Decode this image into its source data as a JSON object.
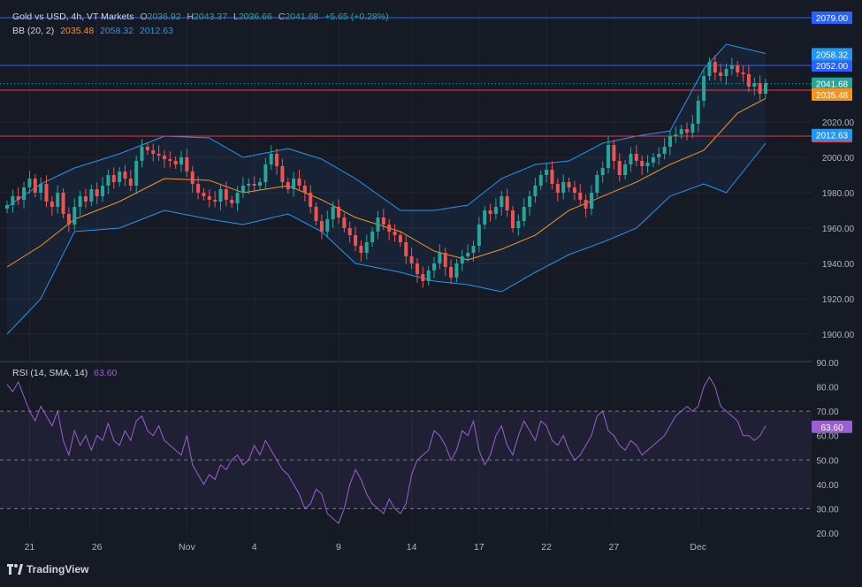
{
  "header": {
    "symbol": "Gold vs USD, 4h, VT Markets",
    "open_label": "O",
    "open": "2036.92",
    "high_label": "H",
    "high": "2043.37",
    "low_label": "L",
    "low": "2036.66",
    "close_label": "C",
    "close": "2041.68",
    "change": "+5.65 (+0.28%)"
  },
  "bb_legend": {
    "label": "BB (20, 2)",
    "basis": "2035.48",
    "upper": "2058.32",
    "lower": "2012.63"
  },
  "rsi_legend": {
    "label": "RSI (14, SMA, 14)",
    "value": "63.60"
  },
  "branding": {
    "name": "TradingView"
  },
  "colors": {
    "up": "#26a69a",
    "down": "#ef5350",
    "basis": "#f7931a",
    "band": "#2196f3",
    "rsi": "#9a5fd0",
    "hline_blue": "#2962ff",
    "hline_red": "#f23645"
  },
  "chart_data": [
    {
      "type": "candlestick",
      "title": "Gold vs USD, 4h, VT Markets",
      "ylim": [
        1885,
        2085
      ],
      "yticks": [
        "2020.00",
        "2000.00",
        "1980.00",
        "1960.00",
        "1940.00",
        "1920.00",
        "1900.00"
      ],
      "x_tick_labels": [
        "21",
        "26",
        "Nov",
        "4",
        "9",
        "14",
        "17",
        "22",
        "27",
        "Dec"
      ],
      "close_series": [
        1973,
        1978,
        1976,
        1983,
        1988,
        1980,
        1985,
        1975,
        1972,
        1980,
        1968,
        1962,
        1972,
        1978,
        1975,
        1982,
        1978,
        1984,
        1990,
        1986,
        1992,
        1988,
        1984,
        1998,
        2006,
        2004,
        2002,
        2001,
        1999,
        1998,
        1996,
        2000,
        1992,
        1985,
        1980,
        1978,
        1976,
        1975,
        1982,
        1976,
        1974,
        1980,
        1984,
        1985,
        1984,
        1986,
        1996,
        2002,
        1995,
        1986,
        1982,
        1988,
        1984,
        1980,
        1972,
        1964,
        1958,
        1965,
        1972,
        1966,
        1960,
        1956,
        1950,
        1946,
        1952,
        1958,
        1966,
        1962,
        1958,
        1956,
        1952,
        1944,
        1940,
        1934,
        1930,
        1936,
        1940,
        1946,
        1938,
        1932,
        1940,
        1944,
        1946,
        1950,
        1962,
        1970,
        1968,
        1972,
        1978,
        1970,
        1960,
        1964,
        1972,
        1978,
        1984,
        1990,
        1993,
        1985,
        1980,
        1986,
        1983,
        1980,
        1976,
        1971,
        1980,
        1990,
        1994,
        2007,
        1998,
        1990,
        1996,
        2002,
        1998,
        1995,
        1997,
        2000,
        2002,
        2006,
        2012,
        2013,
        2016,
        2014,
        2019,
        2032,
        2046,
        2054,
        2048,
        2046,
        2050,
        2052,
        2048,
        2047,
        2040,
        2042,
        2036,
        2042
      ],
      "basis_series": [
        {
          "i": 0,
          "v": 1938
        },
        {
          "i": 6,
          "v": 1950
        },
        {
          "i": 12,
          "v": 1965
        },
        {
          "i": 20,
          "v": 1975
        },
        {
          "i": 28,
          "v": 1988
        },
        {
          "i": 36,
          "v": 1987
        },
        {
          "i": 42,
          "v": 1980
        },
        {
          "i": 50,
          "v": 1984
        },
        {
          "i": 56,
          "v": 1976
        },
        {
          "i": 62,
          "v": 1966
        },
        {
          "i": 70,
          "v": 1958
        },
        {
          "i": 76,
          "v": 1947
        },
        {
          "i": 82,
          "v": 1942
        },
        {
          "i": 88,
          "v": 1948
        },
        {
          "i": 94,
          "v": 1956
        },
        {
          "i": 100,
          "v": 1970
        },
        {
          "i": 106,
          "v": 1978
        },
        {
          "i": 112,
          "v": 1986
        },
        {
          "i": 118,
          "v": 1996
        },
        {
          "i": 124,
          "v": 2004
        },
        {
          "i": 130,
          "v": 2025
        },
        {
          "i": 136,
          "v": 2035
        }
      ],
      "upper_series": [
        {
          "i": 0,
          "v": 1972
        },
        {
          "i": 6,
          "v": 1985
        },
        {
          "i": 12,
          "v": 1994
        },
        {
          "i": 20,
          "v": 2002
        },
        {
          "i": 28,
          "v": 2012
        },
        {
          "i": 36,
          "v": 2011
        },
        {
          "i": 42,
          "v": 2000
        },
        {
          "i": 50,
          "v": 2005
        },
        {
          "i": 56,
          "v": 1999
        },
        {
          "i": 62,
          "v": 1988
        },
        {
          "i": 70,
          "v": 1970
        },
        {
          "i": 76,
          "v": 1970
        },
        {
          "i": 82,
          "v": 1973
        },
        {
          "i": 88,
          "v": 1988
        },
        {
          "i": 94,
          "v": 1996
        },
        {
          "i": 100,
          "v": 1998
        },
        {
          "i": 106,
          "v": 2008
        },
        {
          "i": 112,
          "v": 2012
        },
        {
          "i": 118,
          "v": 2015
        },
        {
          "i": 124,
          "v": 2050
        },
        {
          "i": 128,
          "v": 2064
        },
        {
          "i": 136,
          "v": 2058
        }
      ],
      "lower_series": [
        {
          "i": 0,
          "v": 1900
        },
        {
          "i": 6,
          "v": 1920
        },
        {
          "i": 12,
          "v": 1958
        },
        {
          "i": 20,
          "v": 1960
        },
        {
          "i": 28,
          "v": 1970
        },
        {
          "i": 36,
          "v": 1965
        },
        {
          "i": 42,
          "v": 1962
        },
        {
          "i": 50,
          "v": 1968
        },
        {
          "i": 56,
          "v": 1958
        },
        {
          "i": 62,
          "v": 1940
        },
        {
          "i": 70,
          "v": 1935
        },
        {
          "i": 76,
          "v": 1930
        },
        {
          "i": 82,
          "v": 1928
        },
        {
          "i": 88,
          "v": 1924
        },
        {
          "i": 94,
          "v": 1935
        },
        {
          "i": 100,
          "v": 1945
        },
        {
          "i": 106,
          "v": 1952
        },
        {
          "i": 112,
          "v": 1960
        },
        {
          "i": 118,
          "v": 1978
        },
        {
          "i": 124,
          "v": 1985
        },
        {
          "i": 128,
          "v": 1980
        },
        {
          "i": 136,
          "v": 2012
        }
      ],
      "horizontal_lines": [
        {
          "price": 2079.0,
          "label": "2079.00",
          "color": "#2962ff"
        },
        {
          "price": 2052.0,
          "label": "2052.00",
          "color": "#2962ff"
        },
        {
          "price": 2038.0,
          "label": "2038.00",
          "color": "#f23645"
        },
        {
          "price": 2012.0,
          "label": "2012.00",
          "color": "#f23645"
        }
      ],
      "price_tags": [
        {
          "price": 2058.32,
          "label": "2058.32",
          "color": "#2196f3"
        },
        {
          "price": 2041.68,
          "label": "2041.68",
          "color": "#26a69a"
        },
        {
          "price": 2035.48,
          "label": "2035.48",
          "color": "#f7931a"
        },
        {
          "price": 2012.63,
          "label": "2012.63",
          "color": "#2196f3"
        }
      ]
    },
    {
      "type": "line",
      "title": "RSI (14, SMA, 14)",
      "ylim": [
        20,
        90
      ],
      "yticks": [
        "90.00",
        "80.00",
        "70.00",
        "60.00",
        "50.00",
        "40.00",
        "30.00",
        "20.00"
      ],
      "bands": [
        70,
        50,
        30
      ],
      "values": [
        81,
        78,
        82,
        76,
        70,
        66,
        72,
        68,
        64,
        70,
        58,
        52,
        62,
        56,
        60,
        54,
        60,
        58,
        65,
        58,
        56,
        62,
        58,
        66,
        68,
        62,
        60,
        64,
        58,
        56,
        54,
        52,
        60,
        48,
        44,
        40,
        44,
        42,
        48,
        46,
        50,
        52,
        48,
        50,
        56,
        52,
        58,
        54,
        50,
        46,
        44,
        40,
        36,
        30,
        32,
        38,
        36,
        28,
        26,
        24,
        30,
        40,
        46,
        42,
        36,
        32,
        30,
        28,
        34,
        30,
        28,
        32,
        44,
        50,
        52,
        54,
        62,
        60,
        56,
        50,
        54,
        62,
        60,
        66,
        54,
        48,
        52,
        60,
        64,
        56,
        52,
        60,
        66,
        62,
        58,
        66,
        64,
        58,
        56,
        60,
        54,
        50,
        52,
        56,
        60,
        68,
        70,
        62,
        60,
        56,
        54,
        58,
        56,
        52,
        54,
        56,
        58,
        60,
        64,
        68,
        70,
        72,
        70,
        72,
        80,
        84,
        80,
        72,
        70,
        68,
        66,
        60,
        60,
        58,
        60,
        64
      ]
    }
  ]
}
